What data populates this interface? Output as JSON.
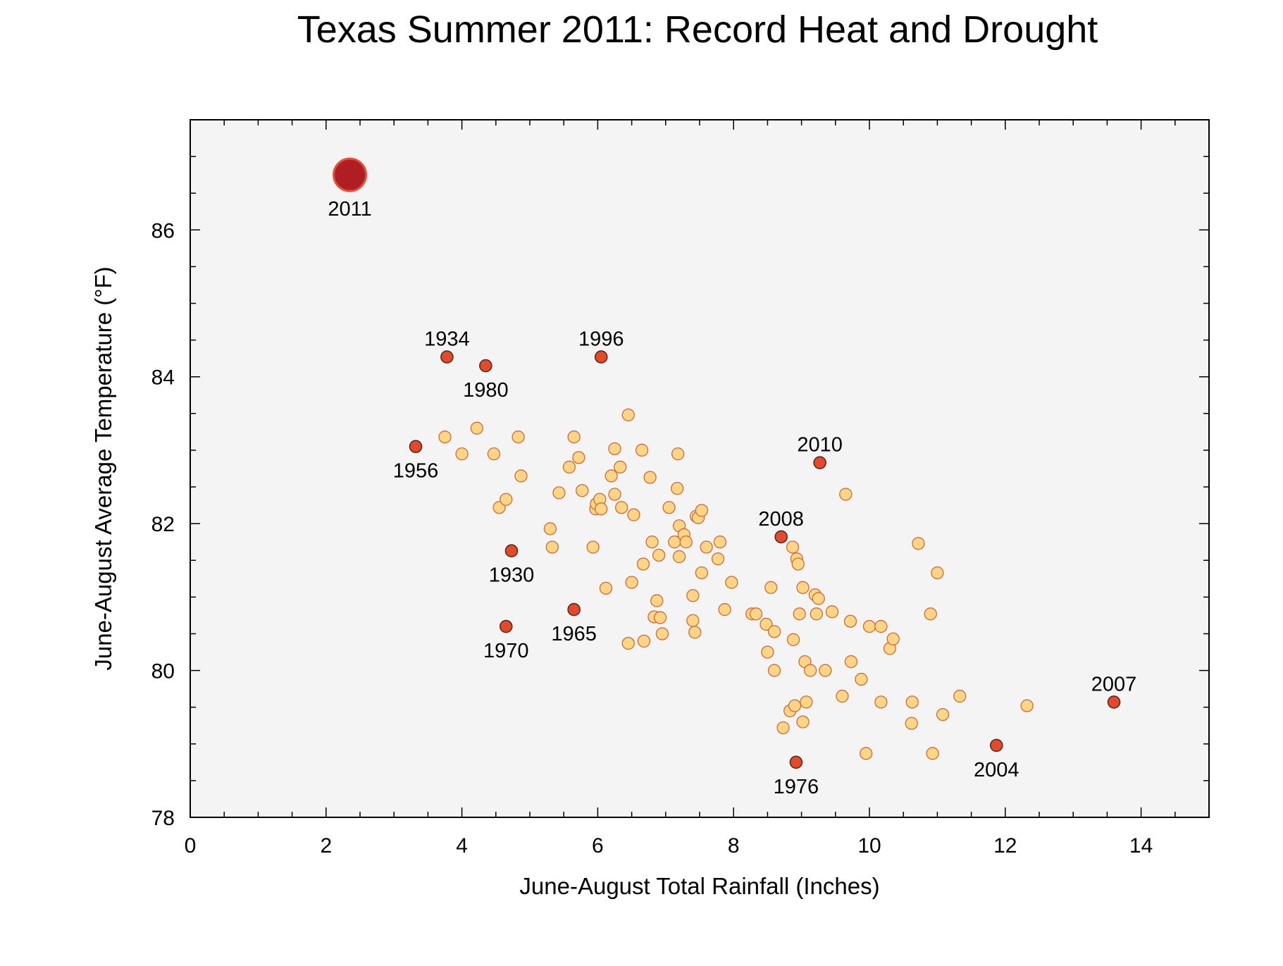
{
  "chart_data": {
    "type": "scatter",
    "title": "Texas Summer 2011:  Record Heat and Drought",
    "xlabel": "June-August Total Rainfall (Inches)",
    "ylabel": "June-August Average Temperature (°F)",
    "xlim": [
      0,
      15
    ],
    "ylim": [
      78,
      87.5
    ],
    "x_ticks": [
      0,
      2,
      4,
      6,
      8,
      10,
      12,
      14
    ],
    "y_ticks": [
      78,
      80,
      82,
      84,
      86
    ],
    "grid": false,
    "colors": {
      "background": "#f4f4f4",
      "regular_fill": "#fdd587",
      "regular_stroke": "#d06a3a",
      "highlight_fill": "#e34a2c",
      "highlight_stroke": "#5a2a1a",
      "record_fill": "#b01e24",
      "record_stroke": "#e0523a"
    },
    "highlighted": [
      {
        "year": "2011",
        "x": 2.35,
        "y": 86.75,
        "record": true
      },
      {
        "year": "1934",
        "x": 3.78,
        "y": 84.27
      },
      {
        "year": "1980",
        "x": 4.35,
        "y": 84.15
      },
      {
        "year": "1996",
        "x": 6.05,
        "y": 84.27
      },
      {
        "year": "1956",
        "x": 3.32,
        "y": 83.05
      },
      {
        "year": "2010",
        "x": 9.27,
        "y": 82.83
      },
      {
        "year": "2008",
        "x": 8.7,
        "y": 81.82
      },
      {
        "year": "1930",
        "x": 4.73,
        "y": 81.63
      },
      {
        "year": "1965",
        "x": 5.65,
        "y": 80.83
      },
      {
        "year": "1970",
        "x": 4.65,
        "y": 80.6
      },
      {
        "year": "2007",
        "x": 13.6,
        "y": 79.57
      },
      {
        "year": "2004",
        "x": 11.87,
        "y": 78.98
      },
      {
        "year": "1976",
        "x": 8.92,
        "y": 78.75
      }
    ],
    "points": [
      [
        3.75,
        83.18
      ],
      [
        4.0,
        82.95
      ],
      [
        4.22,
        83.3
      ],
      [
        4.47,
        82.95
      ],
      [
        4.83,
        83.18
      ],
      [
        4.87,
        82.65
      ],
      [
        4.55,
        82.22
      ],
      [
        4.65,
        82.33
      ],
      [
        5.3,
        81.93
      ],
      [
        5.33,
        81.68
      ],
      [
        5.43,
        82.42
      ],
      [
        5.58,
        82.77
      ],
      [
        5.65,
        83.18
      ],
      [
        5.72,
        82.9
      ],
      [
        5.77,
        82.45
      ],
      [
        5.93,
        81.68
      ],
      [
        5.97,
        82.2
      ],
      [
        5.98,
        82.27
      ],
      [
        6.03,
        82.33
      ],
      [
        6.05,
        82.2
      ],
      [
        6.12,
        81.12
      ],
      [
        6.2,
        82.65
      ],
      [
        6.25,
        83.02
      ],
      [
        6.25,
        82.4
      ],
      [
        6.33,
        82.77
      ],
      [
        6.35,
        82.22
      ],
      [
        6.45,
        83.48
      ],
      [
        6.5,
        81.2
      ],
      [
        6.53,
        82.12
      ],
      [
        6.45,
        80.37
      ],
      [
        6.65,
        83.0
      ],
      [
        6.67,
        81.45
      ],
      [
        6.68,
        80.4
      ],
      [
        6.77,
        82.63
      ],
      [
        6.8,
        81.75
      ],
      [
        6.83,
        80.73
      ],
      [
        6.87,
        80.95
      ],
      [
        6.9,
        81.57
      ],
      [
        6.92,
        80.72
      ],
      [
        6.95,
        80.5
      ],
      [
        7.05,
        82.22
      ],
      [
        7.13,
        81.75
      ],
      [
        7.18,
        82.95
      ],
      [
        7.17,
        82.48
      ],
      [
        7.2,
        81.97
      ],
      [
        7.2,
        81.55
      ],
      [
        7.27,
        81.85
      ],
      [
        7.3,
        81.75
      ],
      [
        7.4,
        81.02
      ],
      [
        7.4,
        80.68
      ],
      [
        7.43,
        80.52
      ],
      [
        7.45,
        82.1
      ],
      [
        7.48,
        82.08
      ],
      [
        7.53,
        82.18
      ],
      [
        7.53,
        81.33
      ],
      [
        7.6,
        81.68
      ],
      [
        7.77,
        81.52
      ],
      [
        7.8,
        81.75
      ],
      [
        7.87,
        80.83
      ],
      [
        7.97,
        81.2
      ],
      [
        8.27,
        80.77
      ],
      [
        8.33,
        80.77
      ],
      [
        8.48,
        80.63
      ],
      [
        8.5,
        80.25
      ],
      [
        8.55,
        81.13
      ],
      [
        8.6,
        80.53
      ],
      [
        8.6,
        80.0
      ],
      [
        8.73,
        79.22
      ],
      [
        8.83,
        79.45
      ],
      [
        8.87,
        81.68
      ],
      [
        8.88,
        80.42
      ],
      [
        8.9,
        79.52
      ],
      [
        8.93,
        81.52
      ],
      [
        8.95,
        81.45
      ],
      [
        8.97,
        80.77
      ],
      [
        9.02,
        81.13
      ],
      [
        9.02,
        79.3
      ],
      [
        9.05,
        80.12
      ],
      [
        9.07,
        79.57
      ],
      [
        9.13,
        80.0
      ],
      [
        9.2,
        81.03
      ],
      [
        9.22,
        80.77
      ],
      [
        9.25,
        80.98
      ],
      [
        9.35,
        80.0
      ],
      [
        9.45,
        80.8
      ],
      [
        9.6,
        79.65
      ],
      [
        9.65,
        82.4
      ],
      [
        9.72,
        80.67
      ],
      [
        9.73,
        80.12
      ],
      [
        9.88,
        79.88
      ],
      [
        9.95,
        78.87
      ],
      [
        10.0,
        80.6
      ],
      [
        10.17,
        80.6
      ],
      [
        10.17,
        79.57
      ],
      [
        10.3,
        80.3
      ],
      [
        10.35,
        80.43
      ],
      [
        10.63,
        79.57
      ],
      [
        10.62,
        79.28
      ],
      [
        10.72,
        81.73
      ],
      [
        10.9,
        80.77
      ],
      [
        10.93,
        78.87
      ],
      [
        11.0,
        81.33
      ],
      [
        11.08,
        79.4
      ],
      [
        11.33,
        79.65
      ],
      [
        12.32,
        79.52
      ]
    ]
  }
}
